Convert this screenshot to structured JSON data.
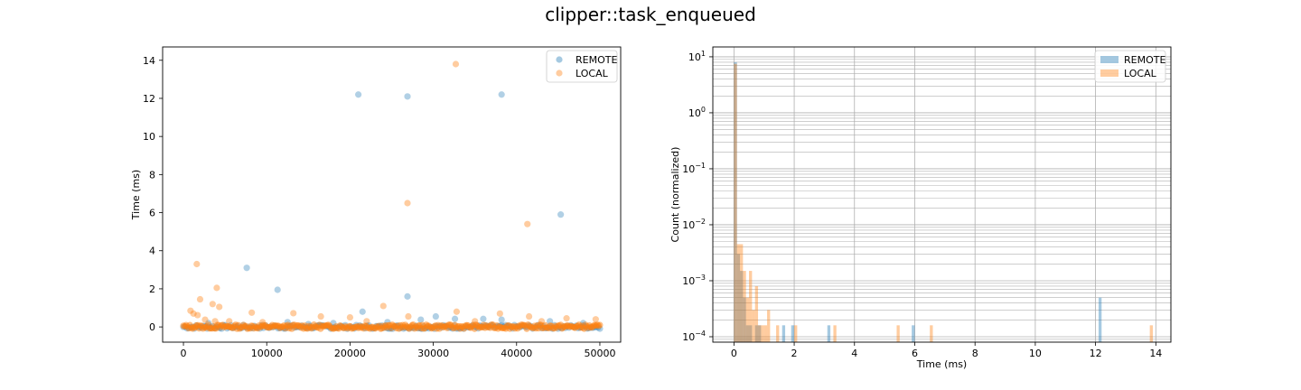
{
  "figure": {
    "title": "clipper::task_enqueued"
  },
  "chart_data": [
    {
      "type": "scatter",
      "title": "",
      "xlabel": "",
      "ylabel": "Time (ms)",
      "xlim": [
        -2500,
        52500
      ],
      "ylim": [
        -0.8,
        14.7
      ],
      "xticks": [
        0,
        10000,
        20000,
        30000,
        40000,
        50000
      ],
      "yticks": [
        0,
        2,
        4,
        6,
        8,
        10,
        12,
        14
      ],
      "legend": {
        "placement": "top-right"
      },
      "series": [
        {
          "name": "REMOTE",
          "color": "#1f77b4",
          "points": [
            [
              21000,
              12.2
            ],
            [
              26900,
              12.1
            ],
            [
              38200,
              12.2
            ],
            [
              45300,
              5.9
            ],
            [
              7600,
              3.1
            ],
            [
              11300,
              1.95
            ],
            [
              26900,
              1.6
            ],
            [
              21500,
              0.8
            ],
            [
              30300,
              0.55
            ],
            [
              28500,
              0.38
            ],
            [
              32600,
              0.42
            ],
            [
              36000,
              0.42
            ],
            [
              38200,
              0.38
            ],
            [
              44000,
              0.3
            ],
            [
              3000,
              0.2
            ],
            [
              12500,
              0.25
            ],
            [
              18000,
              0.2
            ],
            [
              24500,
              0.25
            ],
            [
              48000,
              0.2
            ],
            [
              15000,
              0.15
            ]
          ]
        },
        {
          "name": "LOCAL",
          "color": "#ff7f0e",
          "points": [
            [
              32700,
              13.8
            ],
            [
              26900,
              6.5
            ],
            [
              41300,
              5.4
            ],
            [
              1600,
              3.3
            ],
            [
              4000,
              2.05
            ],
            [
              4300,
              1.05
            ],
            [
              2000,
              1.45
            ],
            [
              3500,
              1.2
            ],
            [
              24000,
              1.1
            ],
            [
              32800,
              0.8
            ],
            [
              850,
              0.85
            ],
            [
              1200,
              0.7
            ],
            [
              1700,
              0.62
            ],
            [
              8200,
              0.75
            ],
            [
              13200,
              0.72
            ],
            [
              16500,
              0.55
            ],
            [
              20000,
              0.5
            ],
            [
              27000,
              0.55
            ],
            [
              38000,
              0.7
            ],
            [
              41500,
              0.55
            ],
            [
              46000,
              0.45
            ],
            [
              49500,
              0.4
            ],
            [
              5500,
              0.3
            ],
            [
              9500,
              0.25
            ],
            [
              2600,
              0.38
            ],
            [
              3800,
              0.3
            ],
            [
              43000,
              0.3
            ],
            [
              35000,
              0.3
            ],
            [
              22000,
              0.3
            ]
          ],
          "dense_band": {
            "x_range": [
              0,
              50000
            ],
            "y_range": [
              -0.1,
              0.12
            ]
          }
        }
      ]
    },
    {
      "type": "histogram",
      "title": "",
      "xlabel": "Time (ms)",
      "ylabel": "Count (normalized)",
      "yscale": "log",
      "xlim": [
        -0.7,
        14.5
      ],
      "ylim": [
        8e-05,
        15
      ],
      "xticks": [
        0,
        2,
        4,
        6,
        8,
        10,
        12,
        14
      ],
      "yticks": [
        "10^1",
        "10^0",
        "10^-1",
        "10^-2",
        "10^-3",
        "10^-4"
      ],
      "grid": true,
      "legend": {
        "placement": "top-right"
      },
      "bin_width": 0.1,
      "series": [
        {
          "name": "REMOTE",
          "color": "#1f77b4",
          "bins": [
            [
              0.0,
              8.0
            ],
            [
              0.1,
              0.003
            ],
            [
              0.2,
              0.0015
            ],
            [
              0.3,
              0.0005
            ],
            [
              0.4,
              0.00016
            ],
            [
              0.5,
              0.00016
            ],
            [
              0.7,
              0.00016
            ],
            [
              0.8,
              0.00016
            ],
            [
              1.6,
              0.00016
            ],
            [
              1.9,
              0.00016
            ],
            [
              3.1,
              0.00016
            ],
            [
              5.9,
              0.00016
            ],
            [
              12.1,
              0.0005
            ]
          ]
        },
        {
          "name": "LOCAL",
          "color": "#ff7f0e",
          "bins": [
            [
              0.0,
              7.5
            ],
            [
              0.1,
              0.0045
            ],
            [
              0.2,
              0.0045
            ],
            [
              0.3,
              0.0015
            ],
            [
              0.4,
              0.0005
            ],
            [
              0.5,
              0.0015
            ],
            [
              0.6,
              0.0003
            ],
            [
              0.7,
              0.0008
            ],
            [
              0.8,
              0.00016
            ],
            [
              0.9,
              0.00016
            ],
            [
              1.0,
              0.00016
            ],
            [
              1.1,
              0.0003
            ],
            [
              1.4,
              0.00016
            ],
            [
              2.0,
              0.00016
            ],
            [
              3.3,
              0.00016
            ],
            [
              5.4,
              0.00016
            ],
            [
              6.5,
              0.00016
            ],
            [
              13.8,
              0.00016
            ]
          ]
        }
      ]
    }
  ]
}
